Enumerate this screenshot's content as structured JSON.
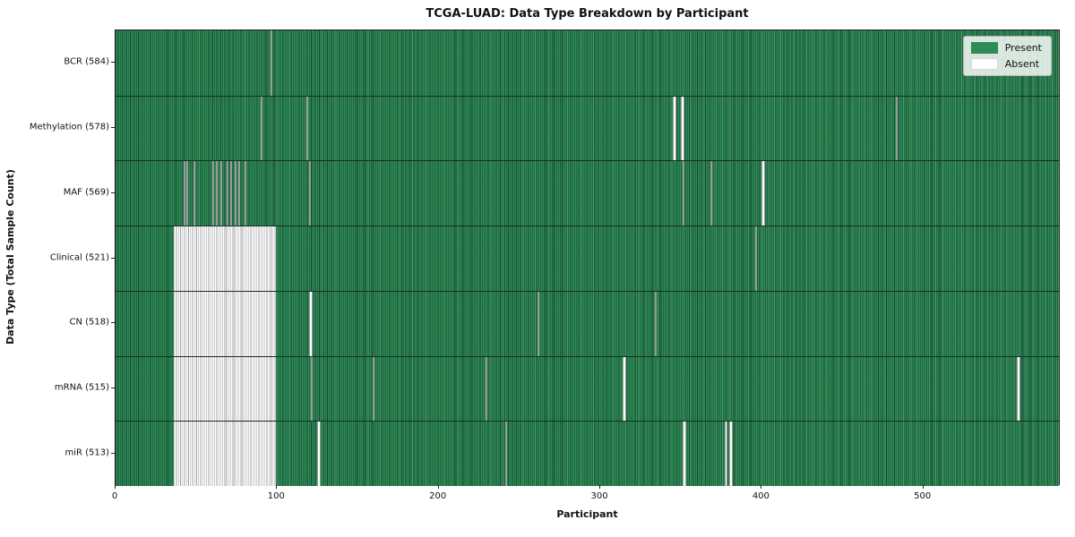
{
  "chart_data": {
    "type": "heatmap",
    "title": "TCGA-LUAD: Data Type Breakdown by Participant",
    "xlabel": "Participant",
    "ylabel": "Data Type (Total Sample Count)",
    "n_participants": 585,
    "x_ticks": [
      0,
      100,
      200,
      300,
      400,
      500
    ],
    "grid": false,
    "legend_position": "upper right",
    "legend": [
      {
        "label": "Present",
        "color": "#2e8b57"
      },
      {
        "label": "Absent",
        "color": "#ffffff"
      }
    ],
    "colors": {
      "present": "#2e8b57",
      "present_edge": "#103a24",
      "absent": "#ffffff",
      "absent_edge": "#a3a3a3",
      "plot_border": "#1a1a1a"
    },
    "rows": [
      {
        "label": "BCR (584)",
        "data_type": "BCR",
        "present_count": 584,
        "absent_ranges": [
          [
            96,
            1
          ]
        ]
      },
      {
        "label": "Methylation (578)",
        "data_type": "Methylation",
        "present_count": 578,
        "absent_ranges": [
          [
            90,
            1
          ],
          [
            118,
            1
          ],
          [
            345,
            2
          ],
          [
            350,
            2
          ],
          [
            483,
            1
          ]
        ]
      },
      {
        "label": "MAF (569)",
        "data_type": "MAF",
        "present_count": 569,
        "absent_ranges": [
          [
            42,
            1
          ],
          [
            44,
            1
          ],
          [
            48,
            1
          ],
          [
            60,
            1
          ],
          [
            62,
            1
          ],
          [
            65,
            1
          ],
          [
            69,
            1
          ],
          [
            71,
            1
          ],
          [
            74,
            1
          ],
          [
            76,
            1
          ],
          [
            80,
            1
          ],
          [
            120,
            1
          ],
          [
            351,
            1
          ],
          [
            368,
            1
          ],
          [
            400,
            2
          ]
        ]
      },
      {
        "label": "Clinical (521)",
        "data_type": "Clinical",
        "present_count": 521,
        "absent_ranges": [
          [
            36,
            63
          ],
          [
            396,
            1
          ]
        ]
      },
      {
        "label": "CN (518)",
        "data_type": "CN",
        "present_count": 518,
        "absent_ranges": [
          [
            36,
            63
          ],
          [
            120,
            2
          ],
          [
            261,
            1
          ],
          [
            334,
            1
          ]
        ]
      },
      {
        "label": "mRNA (515)",
        "data_type": "mRNA",
        "present_count": 515,
        "absent_ranges": [
          [
            36,
            63
          ],
          [
            121,
            1
          ],
          [
            159,
            1
          ],
          [
            229,
            1
          ],
          [
            314,
            2
          ],
          [
            558,
            2
          ]
        ]
      },
      {
        "label": "miR (513)",
        "data_type": "miR",
        "present_count": 513,
        "absent_ranges": [
          [
            36,
            63
          ],
          [
            125,
            2
          ],
          [
            241,
            1
          ],
          [
            351,
            2
          ],
          [
            377,
            2
          ],
          [
            380,
            2
          ]
        ]
      }
    ]
  }
}
